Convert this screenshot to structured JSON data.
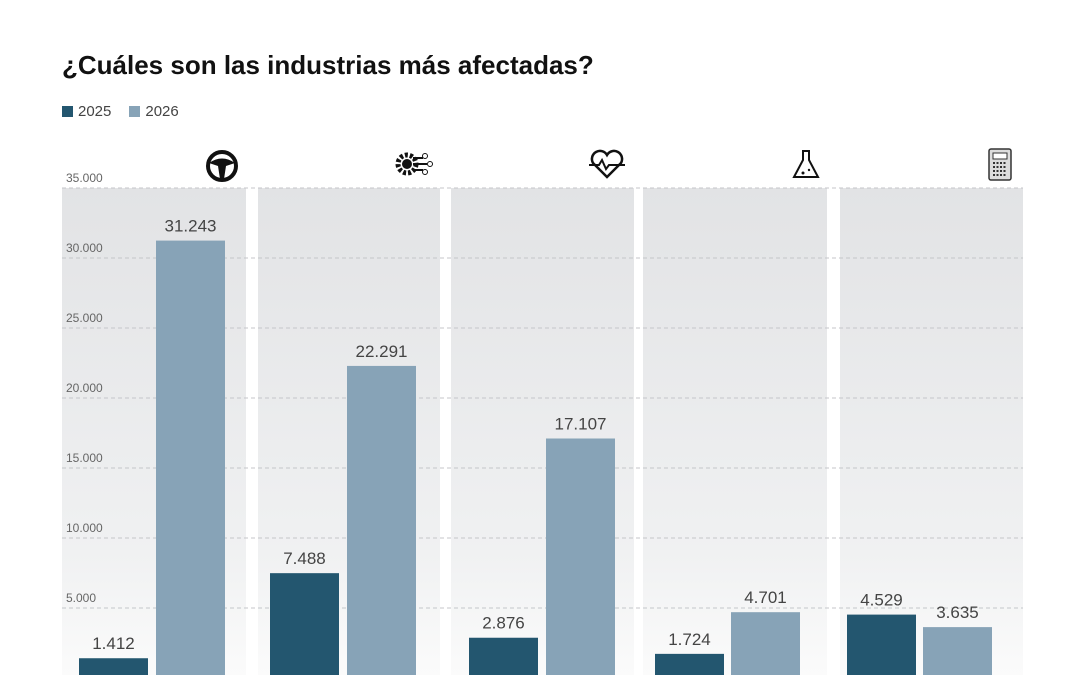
{
  "chart_data": {
    "type": "bar",
    "title": "¿Cuáles son las industrias más afectadas?",
    "categories": [
      "steering-wheel-icon",
      "gear-circuit-icon",
      "heart-pulse-icon",
      "flask-icon",
      "calculator-icon"
    ],
    "series": [
      {
        "name": "2025",
        "color": "#23566f",
        "values": [
          1412,
          7488,
          2876,
          1724,
          4529
        ],
        "labels": [
          "1.412",
          "7.488",
          "2.876",
          "1.724",
          "4.529"
        ]
      },
      {
        "name": "2026",
        "color": "#87a3b7",
        "values": [
          31243,
          22291,
          17107,
          4701,
          3635
        ],
        "labels": [
          "31.243",
          "22.291",
          "17.107",
          "4.701",
          "3.635"
        ]
      }
    ],
    "yticks": [
      5000,
      10000,
      15000,
      20000,
      25000,
      30000,
      35000
    ],
    "ytick_labels": [
      "5.000",
      "10.000",
      "15.000",
      "20.000",
      "25.000",
      "30.000",
      "35.000"
    ],
    "ylim": [
      0,
      35000
    ],
    "grid": true,
    "legend": "top-left"
  }
}
